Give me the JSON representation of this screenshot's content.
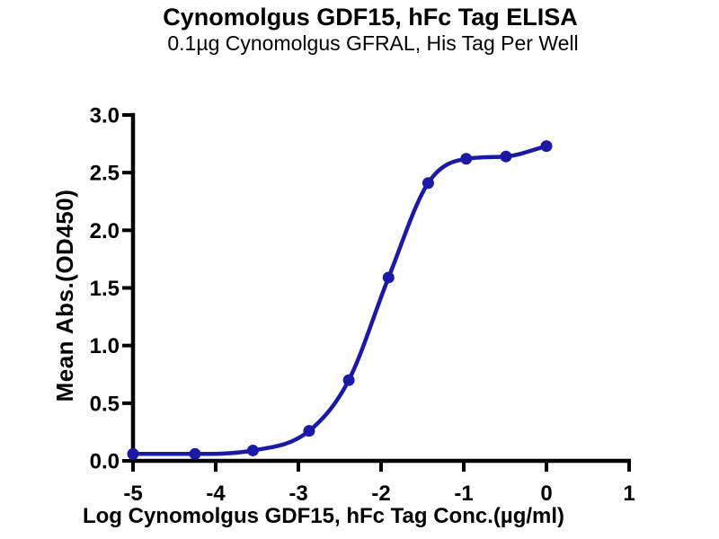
{
  "chart_data": {
    "type": "scatter",
    "title": "Cynomolgus GDF15, hFc Tag ELISA",
    "subtitle": "0.1µg Cynomolgus GFRAL, His Tag Per Well",
    "xlabel": "Log Cynomolgus GDF15, hFc Tag Conc.(µg/ml)",
    "ylabel": "Mean Abs.(OD450)",
    "xlim": [
      -5,
      1
    ],
    "ylim": [
      0,
      3.0
    ],
    "xticks": [
      -5,
      -4,
      -3,
      -2,
      -1,
      0,
      1
    ],
    "xtick_labels": [
      "-5",
      "-4",
      "-3",
      "-2",
      "-1",
      "0",
      "1"
    ],
    "yticks": [
      0.0,
      0.5,
      1.0,
      1.5,
      2.0,
      2.5,
      3.0
    ],
    "ytick_labels": [
      "0.0",
      "0.5",
      "1.0",
      "1.5",
      "2.0",
      "2.5",
      "3.0"
    ],
    "grid": false,
    "legend": "none",
    "curve": "sigmoidal-dose-response-fit",
    "series": [
      {
        "name": "Cynomolgus GDF15, hFc Tag",
        "marker": "circle",
        "points": [
          {
            "x": -5.0,
            "y": 0.06
          },
          {
            "x": -4.25,
            "y": 0.06
          },
          {
            "x": -3.55,
            "y": 0.09
          },
          {
            "x": -2.87,
            "y": 0.26
          },
          {
            "x": -2.39,
            "y": 0.7
          },
          {
            "x": -1.91,
            "y": 1.59
          },
          {
            "x": -1.43,
            "y": 2.41
          },
          {
            "x": -0.97,
            "y": 2.62
          },
          {
            "x": -0.49,
            "y": 2.64
          },
          {
            "x": 0.0,
            "y": 2.73
          }
        ]
      }
    ]
  },
  "style_colors": {
    "curve": "#1a1aa6",
    "point": "#1a1aa6",
    "axis": "#000000",
    "background": "#ffffff",
    "text": "#000000"
  }
}
